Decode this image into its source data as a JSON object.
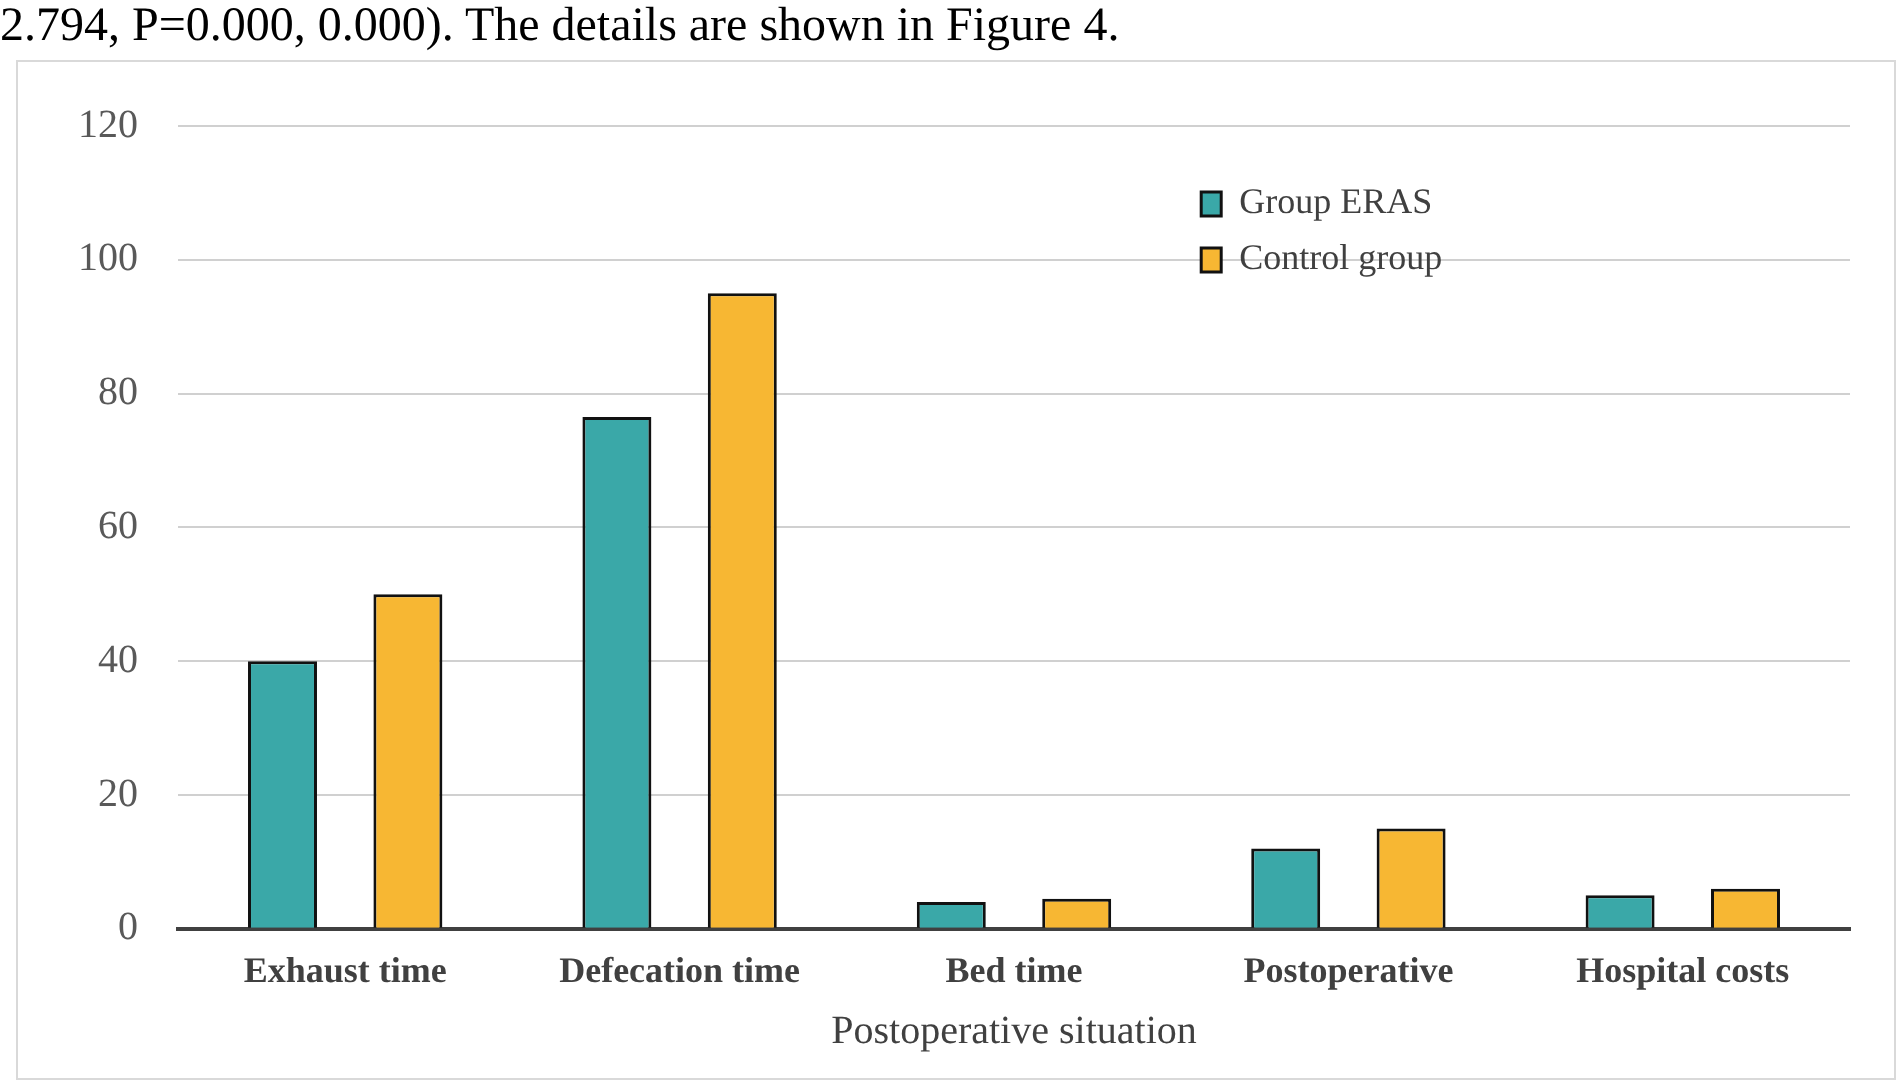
{
  "chart_data": {
    "type": "bar",
    "xlabel": "Postoperative situation",
    "annotations": [
      "2.794, P=0.000, 0.000). The details are shown in Figure 4."
    ],
    "categories": [
      "Exhaust time",
      "Defecation time",
      "Bed time",
      "Postoperative",
      "Hospital costs"
    ],
    "series": [
      {
        "name": "Group ERAS",
        "color": "#3aa8a8",
        "values": [
          40,
          76.5,
          4,
          12,
          5
        ]
      },
      {
        "name": "Control group",
        "color": "#f7b733",
        "values": [
          50,
          95,
          4.5,
          15,
          6
        ]
      }
    ],
    "ylim": [
      0,
      120
    ],
    "yticks": [
      0,
      20,
      40,
      60,
      80,
      100,
      120
    ],
    "grid": "y",
    "legend": "top right"
  }
}
